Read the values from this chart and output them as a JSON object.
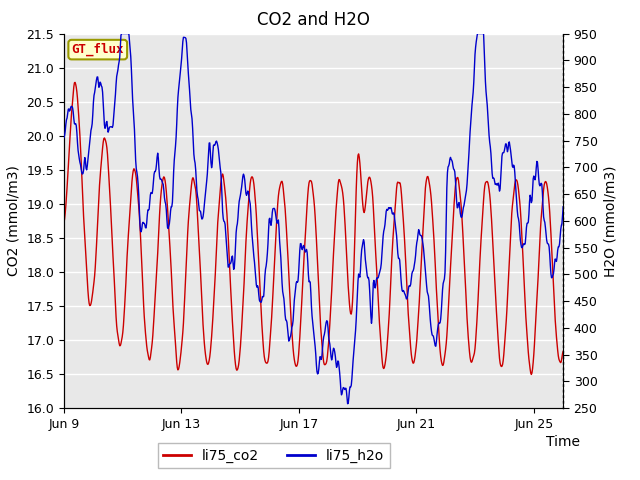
{
  "title": "CO2 and H2O",
  "xlabel": "Time",
  "ylabel_left": "CO2 (mmol/m3)",
  "ylabel_right": "H2O (mmol/m3)",
  "ylim_left": [
    16.0,
    21.5
  ],
  "ylim_right": [
    250,
    950
  ],
  "yticks_left": [
    16.0,
    16.5,
    17.0,
    17.5,
    18.0,
    18.5,
    19.0,
    19.5,
    20.0,
    20.5,
    21.0,
    21.5
  ],
  "yticks_right": [
    250,
    300,
    350,
    400,
    450,
    500,
    550,
    600,
    650,
    700,
    750,
    800,
    850,
    900,
    950
  ],
  "xtick_labels": [
    "Jun 9",
    "Jun 13",
    "Jun 17",
    "Jun 21",
    "Jun 25"
  ],
  "xtick_positions": [
    0,
    4,
    8,
    12,
    16
  ],
  "legend_labels": [
    "li75_co2",
    "li75_h2o"
  ],
  "legend_colors": [
    "#cc0000",
    "#0000cc"
  ],
  "line_color_co2": "#cc0000",
  "line_color_h2o": "#0000cc",
  "line_width": 1.0,
  "background_color": "#ffffff",
  "plot_bg_color": "#e8e8e8",
  "title_fontsize": 12,
  "axis_fontsize": 10,
  "tick_fontsize": 9,
  "legend_fontsize": 10,
  "watermark_text": "GT_flux",
  "watermark_bg": "#ffffcc",
  "watermark_border": "#999900",
  "grid_color": "#ffffff",
  "right_axis_linestyle": "dotted"
}
